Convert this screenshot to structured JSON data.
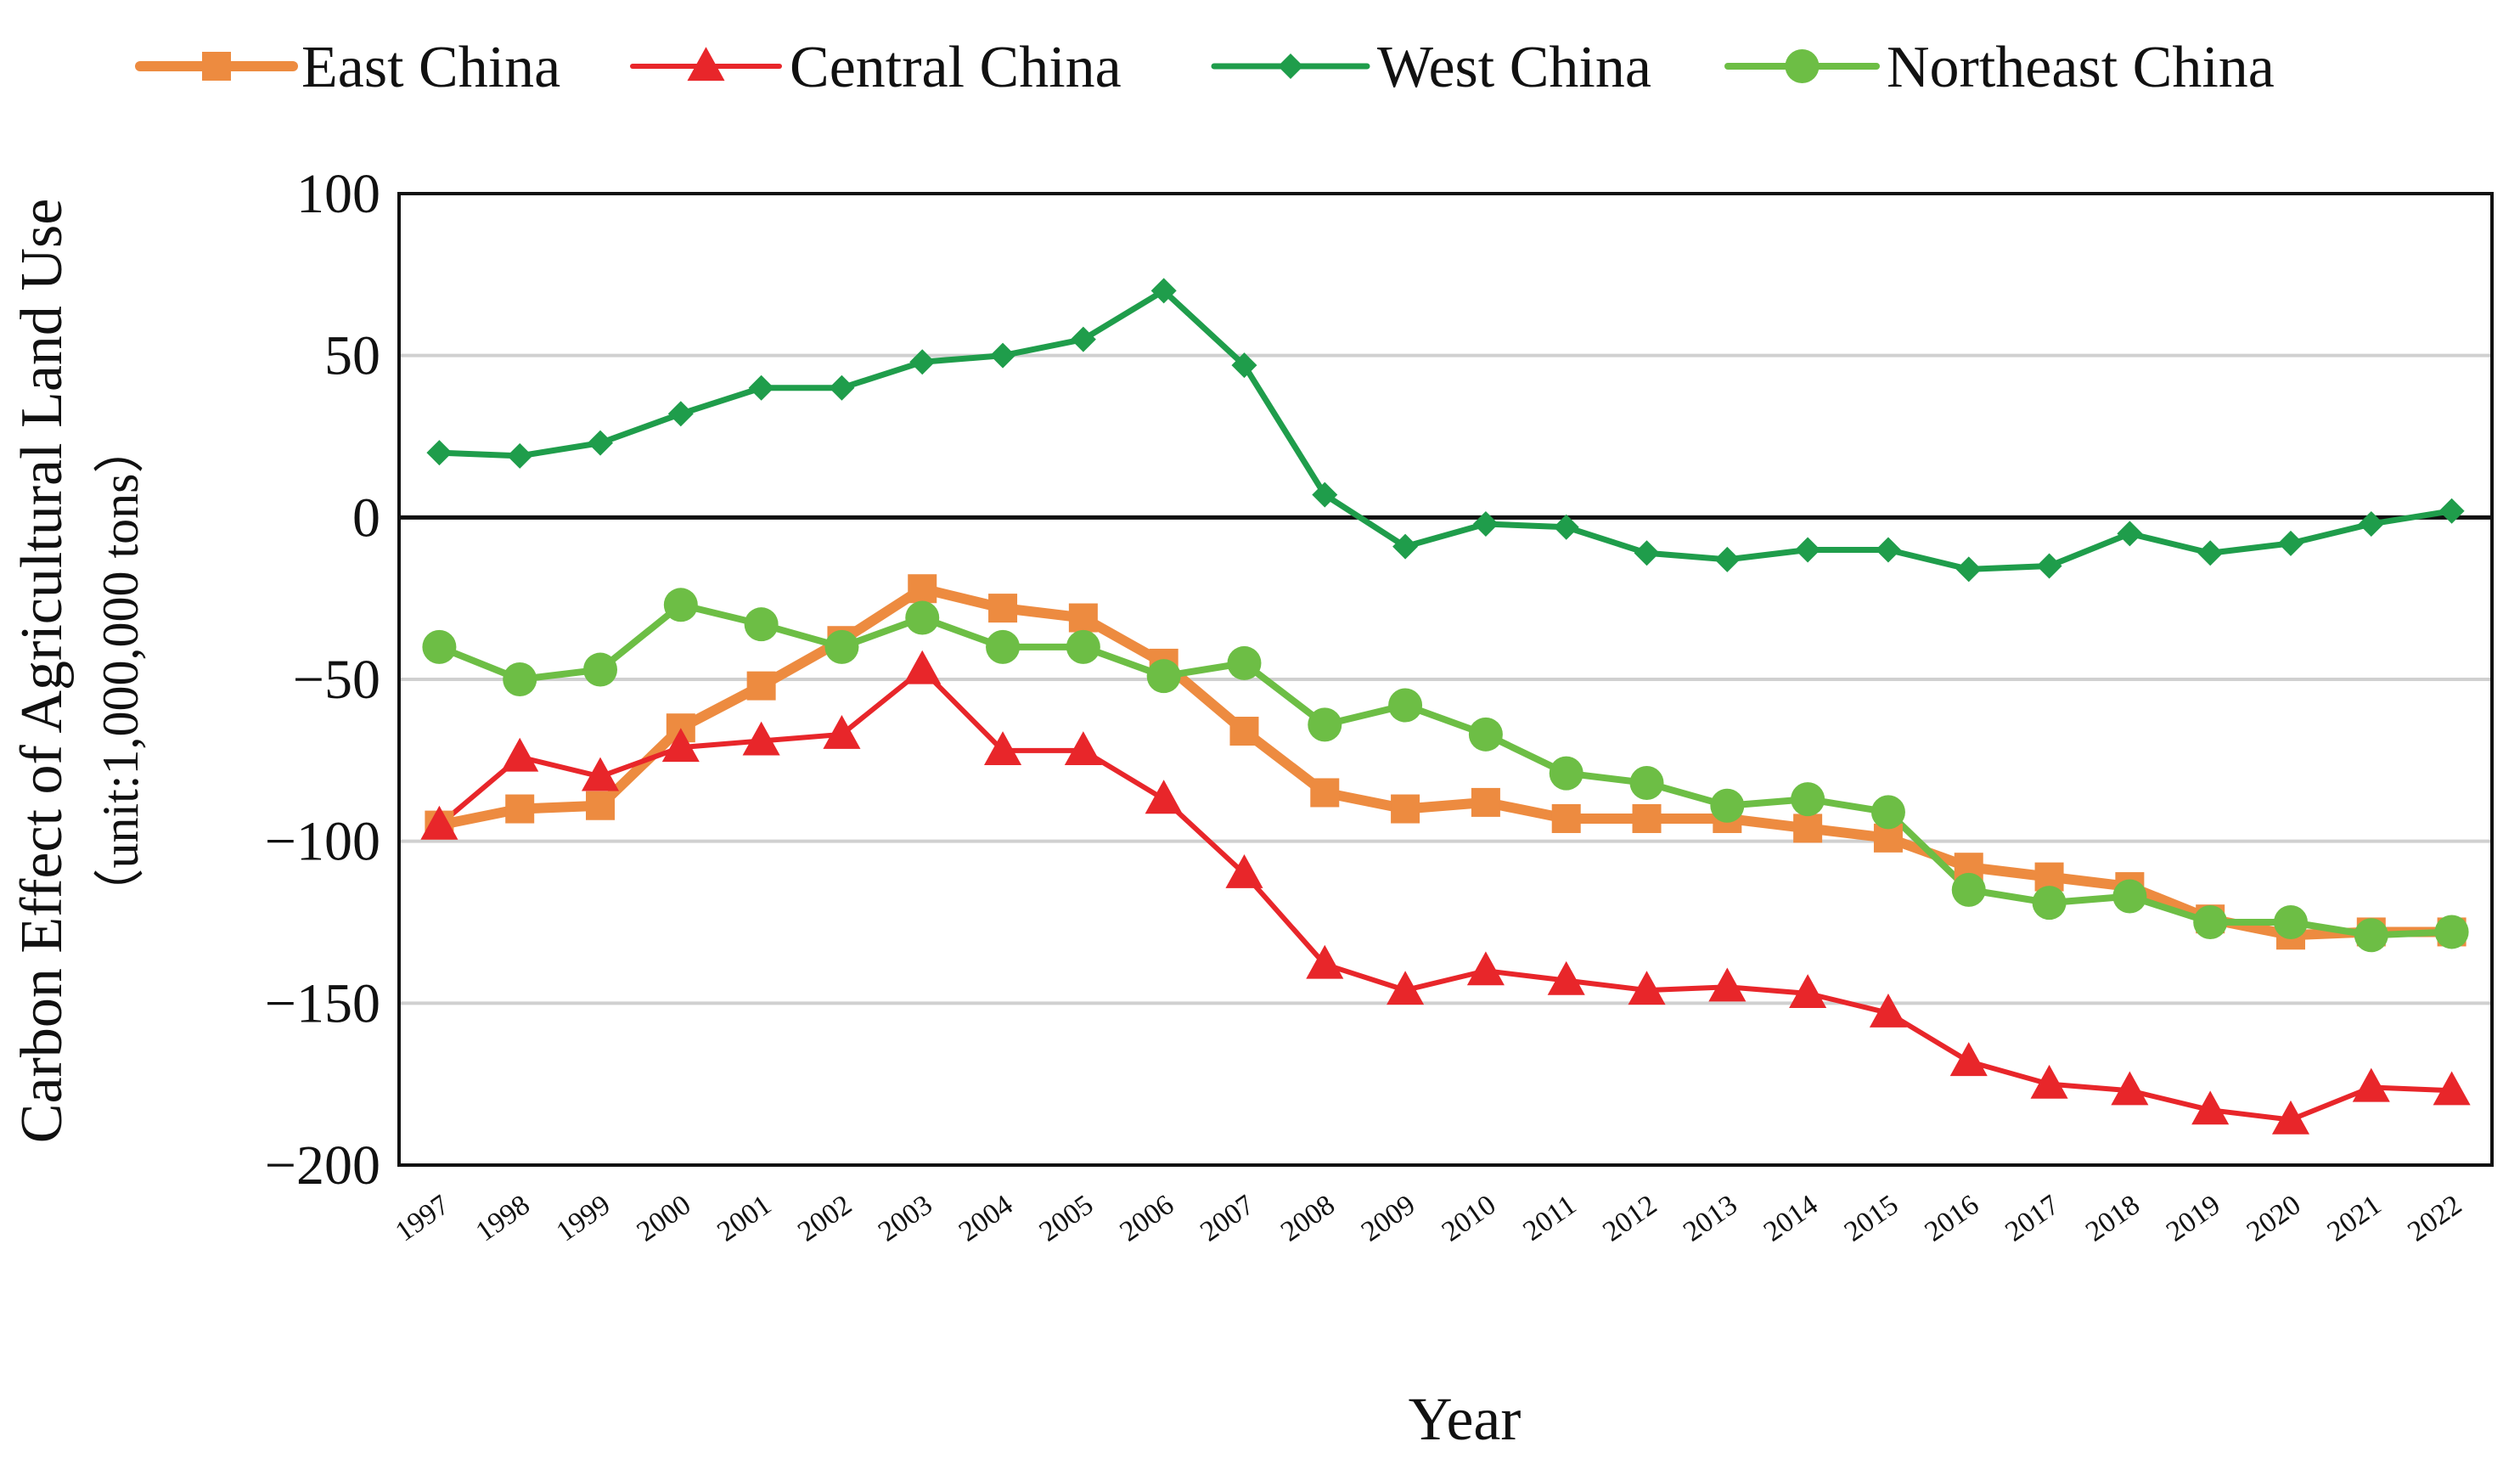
{
  "chart_data": {
    "type": "line",
    "title": "",
    "xlabel": "Year",
    "ylabel_line1": "Carbon Effect of Agricultural Land Use",
    "ylabel_line2": "（unit:1,000,000  tons）",
    "ylim": [
      -200,
      100
    ],
    "yticks": [
      100,
      50,
      0,
      -50,
      -100,
      -150,
      -200
    ],
    "ytick_labels": [
      "100",
      "50",
      "0",
      "−50",
      "−100",
      "−150",
      "−200"
    ],
    "grid": true,
    "legend_position": "top",
    "x": [
      "1997",
      "1998",
      "1999",
      "2000",
      "2001",
      "2002",
      "2003",
      "2004",
      "2005",
      "2006",
      "2007",
      "2008",
      "2009",
      "2010",
      "2011",
      "2012",
      "2013",
      "2014",
      "2015",
      "2016",
      "2017",
      "2018",
      "2019",
      "2020",
      "2021",
      "2022"
    ],
    "series": [
      {
        "name": "East China",
        "color": "#ED8B40",
        "marker": "square",
        "values": [
          -95,
          -90,
          -89,
          -65,
          -52,
          -38,
          -22,
          -28,
          -31,
          -45,
          -66,
          -85,
          -90,
          -88,
          -93,
          -93,
          -93,
          -96,
          -99,
          -108,
          -111,
          -114,
          -124,
          -129,
          -128,
          -128
        ]
      },
      {
        "name": "Central China",
        "color": "#E8262A",
        "marker": "triangle",
        "values": [
          -95,
          -74,
          -80,
          -71,
          -69,
          -67,
          -47,
          -72,
          -72,
          -87,
          -110,
          -138,
          -146,
          -140,
          -143,
          -146,
          -145,
          -147,
          -153,
          -168,
          -175,
          -177,
          -183,
          -186,
          -176,
          -177
        ]
      },
      {
        "name": "West China",
        "color": "#1F9D4B",
        "marker": "diamond",
        "values": [
          20,
          19,
          23,
          32,
          40,
          40,
          48,
          50,
          55,
          70,
          47,
          7,
          -9,
          -2,
          -3,
          -11,
          -13,
          -10,
          -10,
          -16,
          -15,
          -5,
          -11,
          -8,
          -2,
          2
        ]
      },
      {
        "name": "Northeast China",
        "color": "#6DBE45",
        "marker": "circle",
        "values": [
          -40,
          -50,
          -47,
          -27,
          -33,
          -40,
          -31,
          -40,
          -40,
          -49,
          -45,
          -64,
          -58,
          -67,
          -79,
          -82,
          -89,
          -87,
          -91,
          -115,
          -119,
          -117,
          -125,
          -125,
          -129,
          -128
        ]
      }
    ]
  }
}
